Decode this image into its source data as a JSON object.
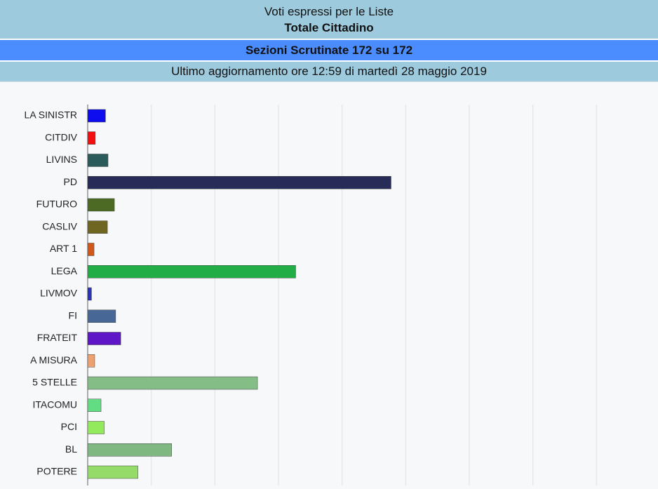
{
  "header": {
    "title": "Voti espressi per le Liste",
    "subtitle": "Totale Cittadino",
    "sections": "Sezioni Scrutinate 172 su 172",
    "updated": "Ultimo aggiornamento ore 12:59 di martedì 28 maggio 2019"
  },
  "chart_data": {
    "type": "hbar",
    "categories": [
      "LA SINISTR",
      "CITDIV",
      "LIVINS",
      "PD",
      "FUTURO",
      "CASLIV",
      "ART 1",
      "LEGA",
      "LIVMOV",
      "FI",
      "FRATEIT",
      "A MISURA",
      "5 STELLE",
      "ITACOMU",
      "PCI",
      "BL",
      "POTERE"
    ],
    "values": [
      0.28,
      0.12,
      0.32,
      4.77,
      0.42,
      0.31,
      0.1,
      3.27,
      0.06,
      0.44,
      0.52,
      0.11,
      2.67,
      0.21,
      0.26,
      1.32,
      0.79
    ],
    "colors": [
      "#0d0df0",
      "#f21010",
      "#2a5b5a",
      "#272b57",
      "#4c6a24",
      "#6e6621",
      "#d2581a",
      "#23ad47",
      "#2a34b8",
      "#476896",
      "#5e16c6",
      "#eea170",
      "#85bd87",
      "#63dd83",
      "#94ea5d",
      "#80b881",
      "#95db6a"
    ],
    "xlim": [
      0,
      9
    ],
    "xticks": [
      0,
      1,
      2,
      3,
      4,
      5,
      6,
      7,
      8
    ],
    "grid": true
  }
}
